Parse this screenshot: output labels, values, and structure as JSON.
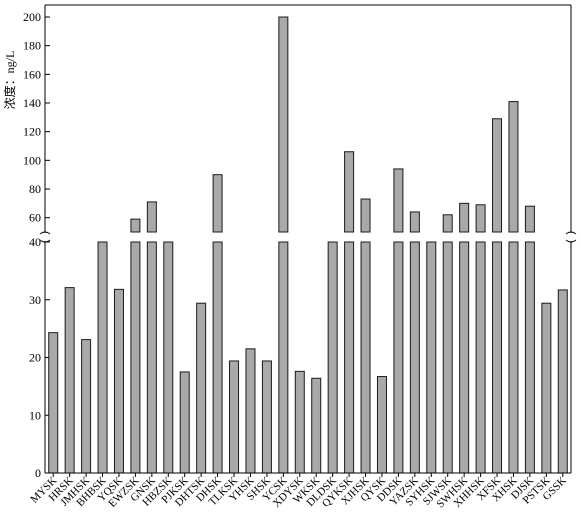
{
  "chart_data": {
    "type": "bar",
    "ylabel": "浓度：ng/L",
    "lower_ylim": [
      0,
      40
    ],
    "upper_ylim": [
      50,
      200
    ],
    "lower_yticks": [
      0,
      10,
      20,
      30,
      40
    ],
    "upper_yticks": [
      60,
      80,
      100,
      120,
      140,
      160,
      180,
      200
    ],
    "grid": false,
    "bar_color": "#a9a9a9",
    "categories": [
      "MYSK",
      "HRSK",
      "JMHSK",
      "BHBSK",
      "YQSK",
      "EWZSK",
      "GNSK",
      "HBZSK",
      "PJKSK",
      "DHTSK",
      "DHSK",
      "TLKSK",
      "YHSK",
      "SHSK",
      "YCSK",
      "XDYSK",
      "WKSK",
      "DLDSK",
      "QYKSK",
      "XJHSK",
      "QYSK",
      "DDSK",
      "YAZSK",
      "SYHSK",
      "SJWSK",
      "SWHSK",
      "XHHSK",
      "XFSK",
      "XHSK",
      "DJSK",
      "PSTSK",
      "GSSK"
    ],
    "values": [
      24.3,
      32.1,
      23.1,
      42,
      31.8,
      59,
      71,
      50,
      17.5,
      29.4,
      90,
      19.4,
      21.5,
      19.4,
      200,
      17.6,
      16.4,
      42,
      106,
      73,
      16.7,
      94,
      64,
      42,
      62,
      70,
      69,
      129,
      141,
      68,
      29.4,
      31.7
    ]
  }
}
